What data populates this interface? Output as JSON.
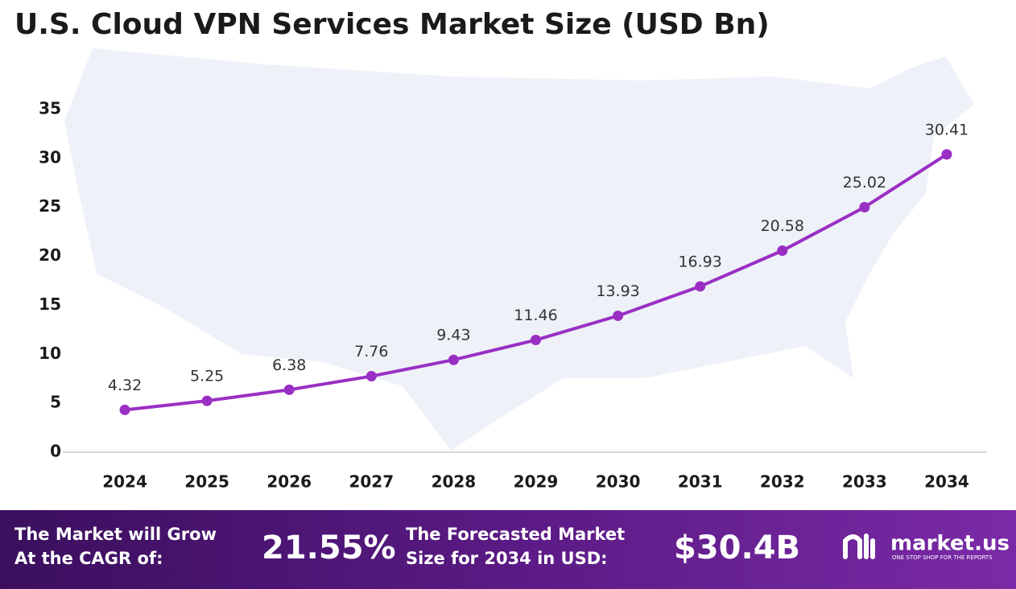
{
  "chart_data": {
    "type": "line",
    "title": "U.S. Cloud VPN Services Market Size (USD Bn)",
    "categories": [
      "2024",
      "2025",
      "2026",
      "2027",
      "2028",
      "2029",
      "2030",
      "2031",
      "2032",
      "2033",
      "2034"
    ],
    "values": [
      4.32,
      5.25,
      6.38,
      7.76,
      9.43,
      11.46,
      13.93,
      16.93,
      20.58,
      25.02,
      30.41
    ],
    "color": "#9a2fc4",
    "ylim": [
      0,
      35
    ],
    "yticks": [
      0,
      5,
      10,
      15,
      20,
      25,
      30,
      35
    ],
    "grid": false
  },
  "footer": {
    "cagr_label": [
      "The Market will Grow",
      "At the CAGR of:"
    ],
    "cagr_value": "21.55%",
    "forecast_label": [
      "The Forecasted Market",
      "Size for 2034 in USD:"
    ],
    "forecast_value": "$30.4B",
    "brand": "market.us",
    "tagline": "ONE STOP SHOP FOR THE REPORTS"
  }
}
